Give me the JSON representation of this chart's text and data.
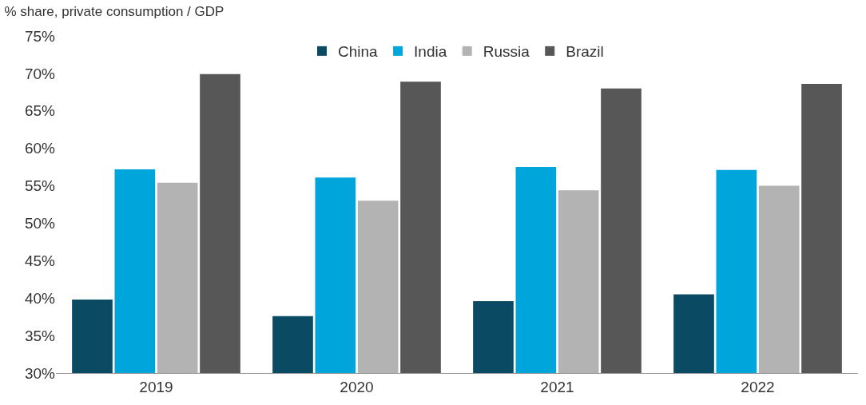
{
  "chart_data": {
    "type": "bar",
    "title": "% share, private consumption / GDP",
    "categories": [
      "2019",
      "2020",
      "2021",
      "2022"
    ],
    "series": [
      {
        "name": "China",
        "color": "#0a4a63",
        "values": [
          39.8,
          37.6,
          39.6,
          40.5
        ]
      },
      {
        "name": "India",
        "color": "#00a6db",
        "values": [
          57.2,
          56.1,
          57.5,
          57.1
        ]
      },
      {
        "name": "Russia",
        "color": "#b3b3b3",
        "values": [
          55.4,
          53.0,
          54.4,
          55.0
        ]
      },
      {
        "name": "Brazil",
        "color": "#575757",
        "values": [
          69.9,
          68.9,
          68.0,
          68.6
        ]
      }
    ],
    "ylim": [
      30,
      75
    ],
    "yticks": [
      {
        "value": 30,
        "label": "30%"
      },
      {
        "value": 35,
        "label": "35%"
      },
      {
        "value": 40,
        "label": "40%"
      },
      {
        "value": 45,
        "label": "45%"
      },
      {
        "value": 50,
        "label": "50%"
      },
      {
        "value": 55,
        "label": "55%"
      },
      {
        "value": 60,
        "label": "60%"
      },
      {
        "value": 65,
        "label": "65%"
      },
      {
        "value": 70,
        "label": "70%"
      },
      {
        "value": 75,
        "label": "75%"
      }
    ],
    "legend": "top"
  }
}
